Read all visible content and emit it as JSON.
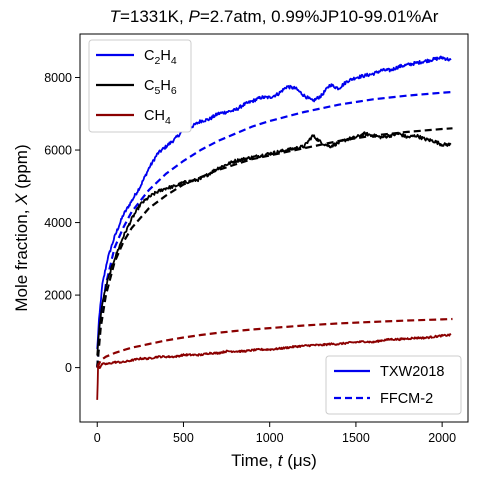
{
  "chart_data": {
    "type": "line",
    "title": {
      "parts": [
        {
          "text": "T",
          "italic": true
        },
        {
          "text": "=1331K, ",
          "italic": false
        },
        {
          "text": "P",
          "italic": true
        },
        {
          "text": "=2.7atm, 0.99%JP10-99.01%Ar",
          "italic": false
        }
      ]
    },
    "xlabel": {
      "parts": [
        {
          "text": "Time, ",
          "italic": false
        },
        {
          "text": "t",
          "italic": true
        },
        {
          "text": " (μs)",
          "italic": false
        }
      ]
    },
    "ylabel": {
      "parts": [
        {
          "text": "Mole fraction, ",
          "italic": false
        },
        {
          "text": "X",
          "italic": true
        },
        {
          "text": " (ppm)",
          "italic": false
        }
      ]
    },
    "xlim": [
      -100,
      2150
    ],
    "ylim": [
      -1500,
      9200
    ],
    "xticks": [
      0,
      500,
      1000,
      1500,
      2000
    ],
    "yticks": [
      0,
      2000,
      4000,
      6000,
      8000
    ],
    "species_legend": {
      "location": "upper left",
      "entries": [
        {
          "main": "C",
          "sub1": "2",
          "mid": "H",
          "sub2": "4",
          "color": "#0000ee"
        },
        {
          "main": "C",
          "sub1": "5",
          "mid": "H",
          "sub2": "6",
          "color": "#000000"
        },
        {
          "main": "CH",
          "sub1": "4",
          "mid": "",
          "sub2": "",
          "color": "#8b0000"
        }
      ]
    },
    "style_legend": {
      "location": "lower right",
      "entries": [
        {
          "label": "TXW2018",
          "dash": "solid",
          "color": "#0000ee"
        },
        {
          "label": "FFCM-2",
          "dash": "dashed",
          "color": "#0000ee"
        }
      ]
    },
    "series": [
      {
        "name": "C2H4 TXW2018",
        "color": "#0000ee",
        "dash": "solid",
        "noise": 45,
        "x": [
          0,
          10,
          30,
          60,
          100,
          150,
          200,
          250,
          300,
          350,
          400,
          450,
          500,
          550,
          600,
          650,
          700,
          750,
          800,
          850,
          900,
          950,
          1000,
          1050,
          1100,
          1150,
          1200,
          1250,
          1300,
          1350,
          1400,
          1450,
          1500,
          1550,
          1600,
          1650,
          1700,
          1750,
          1800,
          1850,
          1900,
          1950,
          2000,
          2050
        ],
        "y": [
          500,
          1300,
          2300,
          3000,
          3600,
          4200,
          4600,
          5000,
          5500,
          5900,
          6100,
          6300,
          6550,
          6650,
          6800,
          6850,
          7000,
          7050,
          7100,
          7250,
          7350,
          7450,
          7450,
          7550,
          7750,
          7700,
          7500,
          7350,
          7500,
          7800,
          7700,
          7900,
          8000,
          8050,
          8100,
          8200,
          8200,
          8300,
          8350,
          8400,
          8450,
          8500,
          8550,
          8480
        ]
      },
      {
        "name": "C2H4 FFCM-2",
        "color": "#0000ee",
        "dash": "dashed",
        "noise": 0,
        "x": [
          0,
          20,
          50,
          100,
          150,
          200,
          300,
          400,
          500,
          600,
          700,
          800,
          900,
          1000,
          1200,
          1400,
          1600,
          1800,
          2000,
          2060
        ],
        "y": [
          0,
          1300,
          2300,
          3300,
          3850,
          4300,
          4900,
          5350,
          5700,
          6000,
          6250,
          6450,
          6650,
          6800,
          7050,
          7250,
          7400,
          7500,
          7580,
          7600
        ]
      },
      {
        "name": "C5H6 TXW2018",
        "color": "#000000",
        "dash": "solid",
        "noise": 45,
        "x": [
          0,
          10,
          30,
          60,
          100,
          150,
          200,
          250,
          300,
          350,
          400,
          450,
          500,
          550,
          600,
          650,
          700,
          750,
          800,
          850,
          900,
          950,
          1000,
          1050,
          1100,
          1150,
          1200,
          1250,
          1300,
          1350,
          1400,
          1450,
          1500,
          1550,
          1600,
          1650,
          1700,
          1750,
          1800,
          1850,
          1900,
          1950,
          2000,
          2050
        ],
        "y": [
          300,
          1000,
          1800,
          2400,
          3000,
          3600,
          4100,
          4500,
          4700,
          4850,
          4950,
          5000,
          5100,
          5150,
          5200,
          5350,
          5500,
          5600,
          5700,
          5750,
          5800,
          5850,
          5900,
          5950,
          6000,
          6050,
          6100,
          6400,
          6200,
          6100,
          6200,
          6300,
          6350,
          6450,
          6400,
          6350,
          6400,
          6450,
          6350,
          6400,
          6300,
          6250,
          6150,
          6150
        ]
      },
      {
        "name": "C5H6 FFCM-2",
        "color": "#000000",
        "dash": "dashed",
        "noise": 0,
        "x": [
          0,
          20,
          50,
          100,
          150,
          200,
          300,
          400,
          500,
          600,
          700,
          800,
          900,
          1000,
          1200,
          1400,
          1600,
          1800,
          2000,
          2060
        ],
        "y": [
          0,
          1100,
          2000,
          2900,
          3450,
          3850,
          4400,
          4750,
          5050,
          5250,
          5450,
          5600,
          5750,
          5850,
          6050,
          6250,
          6400,
          6500,
          6580,
          6600
        ]
      },
      {
        "name": "CH4 TXW2018",
        "color": "#8b0000",
        "dash": "solid",
        "noise": 25,
        "x": [
          0,
          5,
          15,
          30,
          60,
          100,
          150,
          200,
          250,
          300,
          350,
          400,
          450,
          500,
          550,
          600,
          650,
          700,
          750,
          800,
          850,
          900,
          950,
          1000,
          1050,
          1100,
          1150,
          1200,
          1250,
          1300,
          1350,
          1400,
          1450,
          1500,
          1550,
          1600,
          1650,
          1700,
          1750,
          1800,
          1850,
          1900,
          1950,
          2000,
          2050
        ],
        "y": [
          -900,
          100,
          0,
          100,
          100,
          150,
          150,
          200,
          250,
          250,
          300,
          300,
          300,
          350,
          350,
          350,
          400,
          400,
          450,
          450,
          450,
          480,
          500,
          500,
          520,
          550,
          580,
          600,
          620,
          620,
          650,
          650,
          680,
          700,
          720,
          700,
          750,
          780,
          780,
          800,
          820,
          820,
          850,
          880,
          900
        ]
      },
      {
        "name": "CH4 FFCM-2",
        "color": "#8b0000",
        "dash": "dashed",
        "noise": 0,
        "x": [
          0,
          20,
          50,
          100,
          150,
          200,
          300,
          400,
          500,
          600,
          700,
          800,
          900,
          1000,
          1200,
          1400,
          1600,
          1800,
          2000,
          2060
        ],
        "y": [
          0,
          200,
          300,
          400,
          480,
          550,
          650,
          750,
          830,
          900,
          960,
          1010,
          1050,
          1090,
          1160,
          1220,
          1260,
          1300,
          1330,
          1340
        ]
      }
    ]
  }
}
